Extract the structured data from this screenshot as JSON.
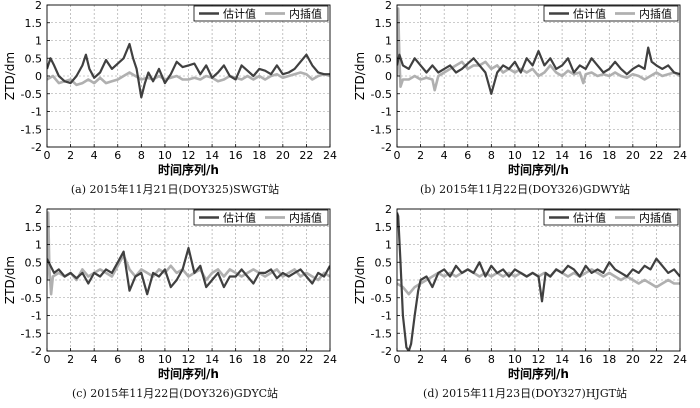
{
  "chart_data": [
    {
      "type": "line",
      "caption": "(a) 2015年11月21日(DOY325)SWGT站",
      "xlabel": "时间序列/h",
      "ylabel": "ZTD/dm",
      "xlim": [
        0,
        24
      ],
      "ylim": [
        -2,
        2
      ],
      "xticks": [
        0,
        2,
        4,
        6,
        8,
        10,
        12,
        14,
        16,
        18,
        20,
        22,
        24
      ],
      "yticks": [
        -2,
        -1.5,
        -1,
        -0.5,
        0,
        0.5,
        1,
        1.5,
        2
      ],
      "grid": true,
      "legend_position": "top-right",
      "series": [
        {
          "name": "估计值",
          "color": "#404040",
          "x": [
            0,
            0.3,
            0.6,
            1,
            1.5,
            2,
            2.5,
            3,
            3.3,
            3.6,
            4,
            4.5,
            5,
            5.5,
            6,
            6.5,
            7,
            7.3,
            7.6,
            8,
            8.3,
            8.6,
            9,
            9.5,
            10,
            10.5,
            11,
            11.5,
            12,
            12.5,
            13,
            13.5,
            14,
            14.5,
            15,
            15.5,
            16,
            16.5,
            17,
            17.5,
            18,
            18.5,
            19,
            19.5,
            20,
            20.5,
            21,
            21.5,
            22,
            22.5,
            23,
            23.5,
            24
          ],
          "y": [
            0.2,
            0.5,
            0.3,
            0,
            -0.15,
            -0.2,
            0,
            0.3,
            0.6,
            0.2,
            -0.05,
            0.1,
            0.45,
            0.2,
            0.35,
            0.5,
            0.9,
            0.5,
            0.2,
            -0.6,
            -0.2,
            0.1,
            -0.15,
            0.2,
            -0.2,
            0.05,
            0.4,
            0.25,
            0.3,
            0.35,
            0.05,
            0.3,
            -0.05,
            0.1,
            0.3,
            0,
            -0.1,
            0.3,
            0.15,
            0,
            0.2,
            0.15,
            0.05,
            0.3,
            0.05,
            0.1,
            0.2,
            0.4,
            0.6,
            0.3,
            0.1,
            0.05,
            0.05
          ]
        },
        {
          "name": "内插值",
          "color": "#b0b0b0",
          "x": [
            0,
            0.5,
            1,
            1.5,
            2,
            2.5,
            3,
            3.5,
            4,
            4.5,
            5,
            5.5,
            6,
            6.5,
            7,
            7.5,
            8,
            8.5,
            9,
            9.5,
            10,
            10.5,
            11,
            11.5,
            12,
            12.5,
            13,
            13.5,
            14,
            14.5,
            15,
            15.5,
            16,
            16.5,
            17,
            17.5,
            18,
            18.5,
            19,
            19.5,
            20,
            20.5,
            21,
            21.5,
            22,
            22.5,
            23,
            23.5,
            24
          ],
          "y": [
            -0.1,
            0,
            -0.2,
            -0.15,
            -0.1,
            -0.25,
            -0.2,
            -0.1,
            -0.2,
            -0.05,
            -0.2,
            -0.15,
            -0.1,
            0,
            0.1,
            0,
            -0.1,
            -0.05,
            -0.1,
            0,
            -0.1,
            -0.05,
            0,
            -0.1,
            -0.1,
            -0.05,
            -0.1,
            0,
            -0.05,
            -0.15,
            -0.1,
            0,
            -0.05,
            -0.1,
            0,
            -0.1,
            0,
            -0.1,
            0,
            0.05,
            -0.05,
            0,
            0.05,
            0.1,
            0.05,
            -0.1,
            0,
            0.05,
            0
          ]
        }
      ]
    },
    {
      "type": "line",
      "caption": "(b) 2015年11月22日(DOY326)GDWY站",
      "xlabel": "时间序列/h",
      "ylabel": "ZTD/dm",
      "xlim": [
        0,
        24
      ],
      "ylim": [
        -2,
        2
      ],
      "xticks": [
        0,
        2,
        4,
        6,
        8,
        10,
        12,
        14,
        16,
        18,
        20,
        22,
        24
      ],
      "yticks": [
        -2,
        -1.5,
        -1,
        -0.5,
        0,
        0.5,
        1,
        1.5,
        2
      ],
      "grid": true,
      "legend_position": "top-right",
      "series": [
        {
          "name": "估计值",
          "color": "#404040",
          "x": [
            0,
            0.2,
            0.5,
            1,
            1.5,
            2,
            2.5,
            3,
            3.5,
            4,
            4.5,
            5,
            5.5,
            6,
            6.5,
            7,
            7.5,
            8,
            8.5,
            9,
            9.5,
            10,
            10.5,
            11,
            11.5,
            12,
            12.5,
            13,
            13.5,
            14,
            14.5,
            15,
            15.5,
            16,
            16.5,
            17,
            17.5,
            18,
            18.5,
            19,
            19.5,
            20,
            20.5,
            21,
            21.3,
            21.6,
            22,
            22.5,
            23,
            23.5,
            24
          ],
          "y": [
            0.3,
            0.6,
            0.3,
            0.2,
            0.5,
            0.3,
            0.1,
            0.3,
            0.1,
            0.2,
            0.3,
            0.1,
            0.2,
            0.35,
            0.5,
            0.3,
            0.1,
            -0.5,
            0.1,
            0.3,
            0.2,
            0.4,
            0.1,
            0.5,
            0.3,
            0.7,
            0.3,
            0.5,
            0.2,
            0.3,
            0.5,
            0.1,
            0.3,
            0.2,
            0.5,
            0.3,
            0.1,
            0.2,
            0.4,
            0.2,
            0.05,
            0.2,
            0.3,
            0.2,
            0.8,
            0.4,
            0.3,
            0.2,
            0.3,
            0.1,
            0.05
          ]
        },
        {
          "name": "内插值",
          "color": "#b0b0b0",
          "x": [
            0,
            0.1,
            0.2,
            0.3,
            0.5,
            1,
            1.5,
            2,
            2.5,
            3,
            3.2,
            3.5,
            4,
            4.5,
            5,
            5.5,
            6,
            6.5,
            7,
            7.5,
            8,
            8.5,
            9,
            9.5,
            10,
            10.5,
            11,
            11.5,
            12,
            12.5,
            13,
            13.5,
            14,
            14.5,
            15,
            15.5,
            15.8,
            16,
            16.5,
            17,
            17.5,
            18,
            18.5,
            19,
            19.5,
            20,
            20.5,
            21,
            21.5,
            22,
            22.5,
            23,
            23.5,
            24
          ],
          "y": [
            0,
            1.9,
            0.5,
            -0.3,
            -0.1,
            -0.1,
            0,
            -0.1,
            -0.05,
            -0.1,
            -0.4,
            0,
            0.1,
            0.2,
            0.3,
            0.4,
            0.2,
            0.3,
            0.3,
            0.4,
            0.2,
            0.3,
            0.1,
            0.2,
            0.1,
            0.2,
            0.1,
            0.2,
            0,
            0.1,
            0.3,
            0.1,
            0,
            0.15,
            0.05,
            0.1,
            -0.2,
            0.05,
            0.1,
            0,
            0.05,
            0,
            0.1,
            0,
            -0.05,
            0.05,
            0,
            -0.1,
            0,
            0.1,
            0,
            0.05,
            0.1,
            0
          ]
        }
      ]
    },
    {
      "type": "line",
      "caption": "(c) 2015年11月22日(DOY326)GDYC站",
      "xlabel": "时间序列/h",
      "ylabel": "ZTD/dm",
      "xlim": [
        0,
        24
      ],
      "ylim": [
        -2,
        2
      ],
      "xticks": [
        0,
        2,
        4,
        6,
        8,
        10,
        12,
        14,
        16,
        18,
        20,
        22,
        24
      ],
      "yticks": [
        -2,
        -1.5,
        -1,
        -0.5,
        0,
        0.5,
        1,
        1.5,
        2
      ],
      "grid": true,
      "legend_position": "top-right",
      "series": [
        {
          "name": "估计值",
          "color": "#404040",
          "x": [
            0,
            0.3,
            0.6,
            1,
            1.5,
            2,
            2.5,
            3,
            3.5,
            4,
            4.5,
            5,
            5.5,
            6,
            6.5,
            7,
            7.5,
            8,
            8.5,
            9,
            9.5,
            10,
            10.5,
            11,
            11.5,
            12,
            12.5,
            13,
            13.5,
            14,
            14.5,
            15,
            15.5,
            16,
            16.5,
            17,
            17.5,
            18,
            18.5,
            19,
            19.5,
            20,
            20.5,
            21,
            21.5,
            22,
            22.5,
            23,
            23.5,
            24
          ],
          "y": [
            0.6,
            0.4,
            0.2,
            0.3,
            0.1,
            0.2,
            0.05,
            0.2,
            -0.1,
            0.2,
            0.1,
            0.3,
            0.2,
            0.5,
            0.8,
            -0.3,
            0.1,
            0.2,
            -0.4,
            0.2,
            0.1,
            0.3,
            -0.2,
            0,
            0.3,
            0.9,
            0.2,
            0.4,
            -0.2,
            0,
            0.2,
            -0.2,
            0.1,
            0.1,
            0.3,
            0.1,
            -0.1,
            0.2,
            0.2,
            0.3,
            0.05,
            0.2,
            0.1,
            0.2,
            0.3,
            0.1,
            -0.1,
            0.2,
            0.1,
            0.4
          ]
        },
        {
          "name": "内插值",
          "color": "#b0b0b0",
          "x": [
            0,
            0.1,
            0.2,
            0.35,
            0.5,
            1,
            1.5,
            2,
            2.5,
            3,
            3.5,
            4,
            4.5,
            5,
            5.5,
            6,
            6.5,
            7,
            7.5,
            8,
            8.5,
            9,
            9.5,
            10,
            10.5,
            11,
            11.5,
            12,
            12.5,
            13,
            13.5,
            14,
            14.5,
            15,
            15.5,
            16,
            16.5,
            17,
            17.5,
            18,
            18.5,
            19,
            19.5,
            20,
            20.5,
            21,
            21.5,
            22,
            22.5,
            23,
            23.5,
            24
          ],
          "y": [
            0,
            1.9,
            0.3,
            -0.4,
            0.1,
            0.2,
            0.1,
            0.2,
            0,
            0.3,
            0.1,
            0.2,
            0.3,
            0.2,
            0.1,
            0.4,
            0.7,
            0.3,
            0.1,
            0.3,
            0.2,
            0.1,
            0.3,
            0.2,
            0.4,
            0.2,
            0.3,
            0.1,
            0.2,
            0.3,
            0,
            0.2,
            0.3,
            0.1,
            0.3,
            0.2,
            0.1,
            0.2,
            0.3,
            0.2,
            0.1,
            0.2,
            0.3,
            0.1,
            0.2,
            0.3,
            0.1,
            0.2,
            0.1,
            0,
            0.2,
            0.1
          ]
        }
      ]
    },
    {
      "type": "line",
      "caption": "(d) 2015年11月23日(DOY327)HJGT站",
      "xlabel": "时间序列/h",
      "ylabel": "ZTD/dm",
      "xlim": [
        0,
        24
      ],
      "ylim": [
        -2,
        2
      ],
      "xticks": [
        0,
        2,
        4,
        6,
        8,
        10,
        12,
        14,
        16,
        18,
        20,
        22,
        24
      ],
      "yticks": [
        -2,
        -1.5,
        -1,
        -0.5,
        0,
        0.5,
        1,
        1.5,
        2
      ],
      "grid": true,
      "legend_position": "top-right",
      "series": [
        {
          "name": "估计值",
          "color": "#404040",
          "x": [
            0,
            0.1,
            0.3,
            0.5,
            0.8,
            1,
            1.2,
            1.5,
            1.8,
            2,
            2.5,
            3,
            3.5,
            4,
            4.5,
            5,
            5.5,
            6,
            6.5,
            7,
            7.5,
            8,
            8.5,
            9,
            9.5,
            10,
            10.5,
            11,
            11.5,
            12,
            12.3,
            12.6,
            13,
            13.5,
            14,
            14.5,
            15,
            15.5,
            16,
            16.5,
            17,
            17.5,
            18,
            18.5,
            19,
            19.5,
            20,
            20.5,
            21,
            21.5,
            22,
            22.5,
            23,
            23.5,
            24
          ],
          "y": [
            1.9,
            1.8,
            0.5,
            -1,
            -1.9,
            -2,
            -1.8,
            -1,
            -0.3,
            0,
            0.1,
            -0.2,
            0.2,
            0.3,
            0.1,
            0.4,
            0.2,
            0.3,
            0.2,
            0.5,
            0.1,
            0.4,
            0.2,
            0.3,
            0.1,
            0.3,
            0.2,
            0.1,
            0.2,
            0.1,
            -0.6,
            0.2,
            0.1,
            0.3,
            0.2,
            0.4,
            0.3,
            0.1,
            0.4,
            0.2,
            0.3,
            0.2,
            0.5,
            0.3,
            0.2,
            0.1,
            0.3,
            0.2,
            0.4,
            0.3,
            0.6,
            0.4,
            0.2,
            0.3,
            0.1
          ]
        },
        {
          "name": "内插值",
          "color": "#b0b0b0",
          "x": [
            0,
            0.5,
            1,
            1.5,
            2,
            2.5,
            3,
            3.5,
            4,
            4.5,
            5,
            5.5,
            6,
            6.5,
            7,
            7.5,
            8,
            8.5,
            9,
            9.5,
            10,
            10.5,
            11,
            11.5,
            12,
            12.5,
            13,
            13.5,
            14,
            14.5,
            15,
            15.5,
            16,
            16.5,
            17,
            17.5,
            18,
            18.5,
            19,
            19.5,
            20,
            20.5,
            21,
            21.5,
            22,
            22.5,
            23,
            23.5,
            24
          ],
          "y": [
            -0.1,
            -0.2,
            -0.4,
            -0.2,
            -0.1,
            0,
            0.1,
            0.2,
            0.1,
            0.2,
            0.1,
            0.2,
            0.3,
            0.2,
            0.1,
            0.2,
            0.1,
            0.2,
            0.1,
            0.2,
            0.1,
            0.2,
            0.1,
            0.2,
            0.1,
            0.2,
            0.1,
            0.3,
            0.2,
            0.1,
            0.2,
            0.1,
            0.2,
            0.3,
            0.2,
            0.1,
            0.2,
            0.1,
            0,
            0.1,
            0,
            -0.1,
            0,
            -0.1,
            -0.2,
            -0.1,
            0,
            -0.1,
            -0.1
          ]
        }
      ]
    }
  ]
}
